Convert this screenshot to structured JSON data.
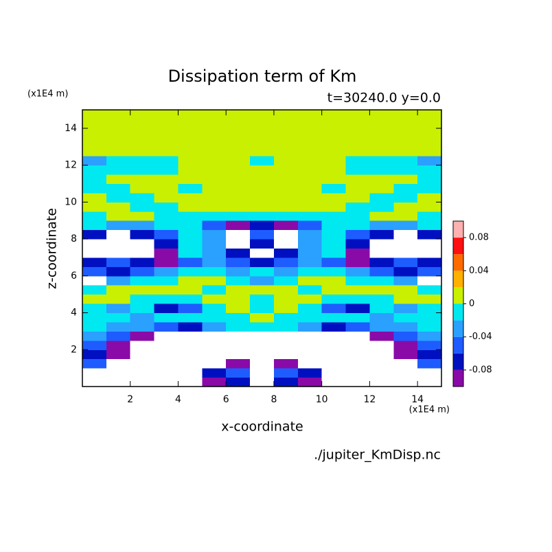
{
  "chart_data": {
    "type": "contour",
    "title": "Dissipation term of Km",
    "subtitle": "t=30240.0 y=0.0",
    "x_label": "x-coordinate",
    "y_label": "z-coordinate",
    "x_unit": "(x1E4 m)",
    "y_unit": "(x1E4 m)",
    "footer": "./jupiter_KmDisp.nc",
    "xlim": [
      0,
      15
    ],
    "ylim": [
      0,
      15
    ],
    "xticks": [
      2,
      4,
      6,
      8,
      10,
      12,
      14
    ],
    "yticks": [
      2,
      4,
      6,
      8,
      10,
      12,
      14
    ],
    "levels": [
      -0.1,
      -0.08,
      -0.06,
      -0.04,
      -0.02,
      0,
      0.02,
      0.04,
      0.06,
      0.08,
      0.1
    ],
    "colors": [
      "#8a0aa8",
      "#0010c0",
      "#1e5cff",
      "#2aa0ff",
      "#00e8f0",
      "#c8f000",
      "#ffb000",
      "#ff6a00",
      "#ff1010",
      "#ffb0b0"
    ],
    "under_color": "#ffffff",
    "colorbar_ticks": [
      -0.08,
      -0.04,
      0,
      0.04,
      0.08
    ],
    "x": [
      0.5,
      1.5,
      2.5,
      3.5,
      4.5,
      5.5,
      6.5,
      7.5,
      8.5,
      9.5,
      10.5,
      11.5,
      12.5,
      13.5,
      14.5
    ],
    "y": [
      0.25,
      0.75,
      1.25,
      1.75,
      2.25,
      2.75,
      3.25,
      3.75,
      4.25,
      4.75,
      5.25,
      5.75,
      6.25,
      6.75,
      7.25,
      7.75,
      8.25,
      8.75,
      9.25,
      9.75,
      10.25,
      10.75,
      11.25,
      11.75,
      12.25,
      12.75,
      13.25,
      13.75,
      14.25,
      14.75
    ],
    "z": [
      [
        -0.15,
        -0.15,
        -0.15,
        -0.15,
        -0.15,
        -0.09,
        -0.07,
        -0.15,
        -0.07,
        -0.09,
        -0.15,
        -0.15,
        -0.15,
        -0.15,
        -0.15
      ],
      [
        -0.15,
        -0.15,
        -0.15,
        -0.15,
        -0.15,
        -0.07,
        -0.05,
        -0.15,
        -0.05,
        -0.07,
        -0.15,
        -0.15,
        -0.15,
        -0.15,
        -0.15
      ],
      [
        -0.05,
        -0.15,
        -0.15,
        -0.15,
        -0.15,
        -0.15,
        -0.09,
        -0.15,
        -0.09,
        -0.15,
        -0.15,
        -0.15,
        -0.15,
        -0.15,
        -0.05
      ],
      [
        -0.07,
        -0.09,
        -0.15,
        -0.15,
        -0.15,
        -0.15,
        -0.15,
        -0.15,
        -0.15,
        -0.15,
        -0.15,
        -0.15,
        -0.15,
        -0.09,
        -0.07
      ],
      [
        -0.05,
        -0.09,
        -0.15,
        -0.15,
        -0.15,
        -0.15,
        -0.15,
        -0.15,
        -0.15,
        -0.15,
        -0.15,
        -0.15,
        -0.15,
        -0.09,
        -0.05
      ],
      [
        -0.03,
        -0.05,
        -0.09,
        -0.15,
        -0.15,
        -0.15,
        -0.15,
        -0.15,
        -0.15,
        -0.15,
        -0.15,
        -0.15,
        -0.09,
        -0.05,
        -0.03
      ],
      [
        -0.01,
        -0.03,
        -0.03,
        -0.05,
        -0.07,
        -0.03,
        -0.01,
        -0.01,
        -0.01,
        -0.03,
        -0.07,
        -0.05,
        -0.03,
        -0.03,
        -0.01
      ],
      [
        -0.01,
        -0.01,
        -0.03,
        -0.01,
        -0.01,
        -0.01,
        -0.01,
        0.01,
        -0.01,
        -0.01,
        -0.01,
        -0.01,
        -0.03,
        -0.01,
        -0.01
      ],
      [
        -0.01,
        -0.03,
        -0.01,
        -0.07,
        -0.05,
        -0.01,
        0.01,
        -0.01,
        0.01,
        -0.01,
        -0.05,
        -0.07,
        -0.01,
        -0.03,
        -0.01
      ],
      [
        0.01,
        0.01,
        -0.01,
        -0.01,
        -0.01,
        0.01,
        0.01,
        -0.01,
        0.01,
        0.01,
        -0.01,
        -0.01,
        -0.01,
        0.01,
        0.01
      ],
      [
        -0.01,
        0.01,
        0.01,
        0.01,
        0.01,
        -0.01,
        0.01,
        0.01,
        0.01,
        -0.01,
        0.01,
        0.01,
        0.01,
        0.01,
        -0.01
      ],
      [
        -0.15,
        -0.03,
        -0.01,
        -0.01,
        0.01,
        0.01,
        -0.01,
        -0.03,
        -0.01,
        0.01,
        0.01,
        -0.01,
        -0.01,
        -0.03,
        -0.15
      ],
      [
        -0.05,
        -0.07,
        -0.05,
        -0.03,
        -0.01,
        -0.01,
        -0.03,
        -0.01,
        -0.03,
        -0.01,
        -0.01,
        -0.03,
        -0.05,
        -0.07,
        -0.05
      ],
      [
        -0.07,
        -0.05,
        -0.07,
        -0.09,
        -0.05,
        -0.03,
        -0.05,
        -0.07,
        -0.05,
        -0.03,
        -0.05,
        -0.09,
        -0.07,
        -0.05,
        -0.07
      ],
      [
        -0.15,
        -0.15,
        -0.15,
        -0.09,
        -0.01,
        -0.03,
        -0.07,
        -0.15,
        -0.07,
        -0.03,
        -0.01,
        -0.09,
        -0.15,
        -0.15,
        -0.15
      ],
      [
        -0.15,
        -0.15,
        -0.15,
        -0.07,
        -0.01,
        -0.03,
        -0.15,
        -0.07,
        -0.15,
        -0.03,
        -0.01,
        -0.07,
        -0.15,
        -0.15,
        -0.15
      ],
      [
        -0.07,
        -0.15,
        -0.07,
        -0.05,
        -0.01,
        -0.03,
        -0.15,
        -0.05,
        -0.15,
        -0.03,
        -0.01,
        -0.05,
        -0.07,
        -0.15,
        -0.07
      ],
      [
        -0.01,
        -0.03,
        -0.03,
        -0.01,
        -0.01,
        -0.05,
        -0.09,
        -0.07,
        -0.09,
        -0.05,
        -0.01,
        -0.01,
        -0.03,
        -0.03,
        -0.01
      ],
      [
        -0.01,
        0.01,
        0.01,
        -0.01,
        -0.01,
        -0.01,
        -0.01,
        -0.01,
        -0.01,
        -0.01,
        -0.01,
        -0.01,
        0.01,
        0.01,
        -0.01
      ],
      [
        0.01,
        0.01,
        -0.01,
        -0.01,
        0.01,
        0.01,
        0.01,
        0.01,
        0.01,
        0.01,
        0.01,
        -0.01,
        -0.01,
        0.01,
        0.01
      ],
      [
        0.01,
        -0.01,
        -0.01,
        0.01,
        0.01,
        0.01,
        0.01,
        0.01,
        0.01,
        0.01,
        0.01,
        0.01,
        -0.01,
        -0.01,
        0.01
      ],
      [
        -0.01,
        -0.01,
        0.01,
        0.01,
        -0.01,
        0.01,
        0.01,
        0.01,
        0.01,
        0.01,
        -0.01,
        0.01,
        0.01,
        -0.01,
        -0.01
      ],
      [
        -0.01,
        0.01,
        0.01,
        0.01,
        0.01,
        0.01,
        0.01,
        0.01,
        0.01,
        0.01,
        0.01,
        0.01,
        0.01,
        0.01,
        -0.01
      ],
      [
        -0.01,
        -0.01,
        -0.01,
        -0.01,
        0.01,
        0.01,
        0.01,
        0.01,
        0.01,
        0.01,
        0.01,
        -0.01,
        -0.01,
        -0.01,
        -0.01
      ],
      [
        -0.03,
        -0.01,
        -0.01,
        -0.01,
        0.01,
        0.01,
        0.01,
        -0.01,
        0.01,
        0.01,
        0.01,
        -0.01,
        -0.01,
        -0.01,
        -0.03
      ],
      [
        0.01,
        0.01,
        0.01,
        0.01,
        0.01,
        0.01,
        0.01,
        0.01,
        0.01,
        0.01,
        0.01,
        0.01,
        0.01,
        0.01,
        0.01
      ],
      [
        0.01,
        0.01,
        0.01,
        0.01,
        0.01,
        0.01,
        0.01,
        0.01,
        0.01,
        0.01,
        0.01,
        0.01,
        0.01,
        0.01,
        0.01
      ],
      [
        0.01,
        0.01,
        0.01,
        0.01,
        0.01,
        0.01,
        0.01,
        0.01,
        0.01,
        0.01,
        0.01,
        0.01,
        0.01,
        0.01,
        0.01
      ],
      [
        0.01,
        0.01,
        0.01,
        0.01,
        0.01,
        0.01,
        0.01,
        0.01,
        0.01,
        0.01,
        0.01,
        0.01,
        0.01,
        0.01,
        0.01
      ],
      [
        0.01,
        0.01,
        0.01,
        0.01,
        0.01,
        0.01,
        0.01,
        0.01,
        0.01,
        0.01,
        0.01,
        0.01,
        0.01,
        0.01,
        0.01
      ]
    ]
  }
}
